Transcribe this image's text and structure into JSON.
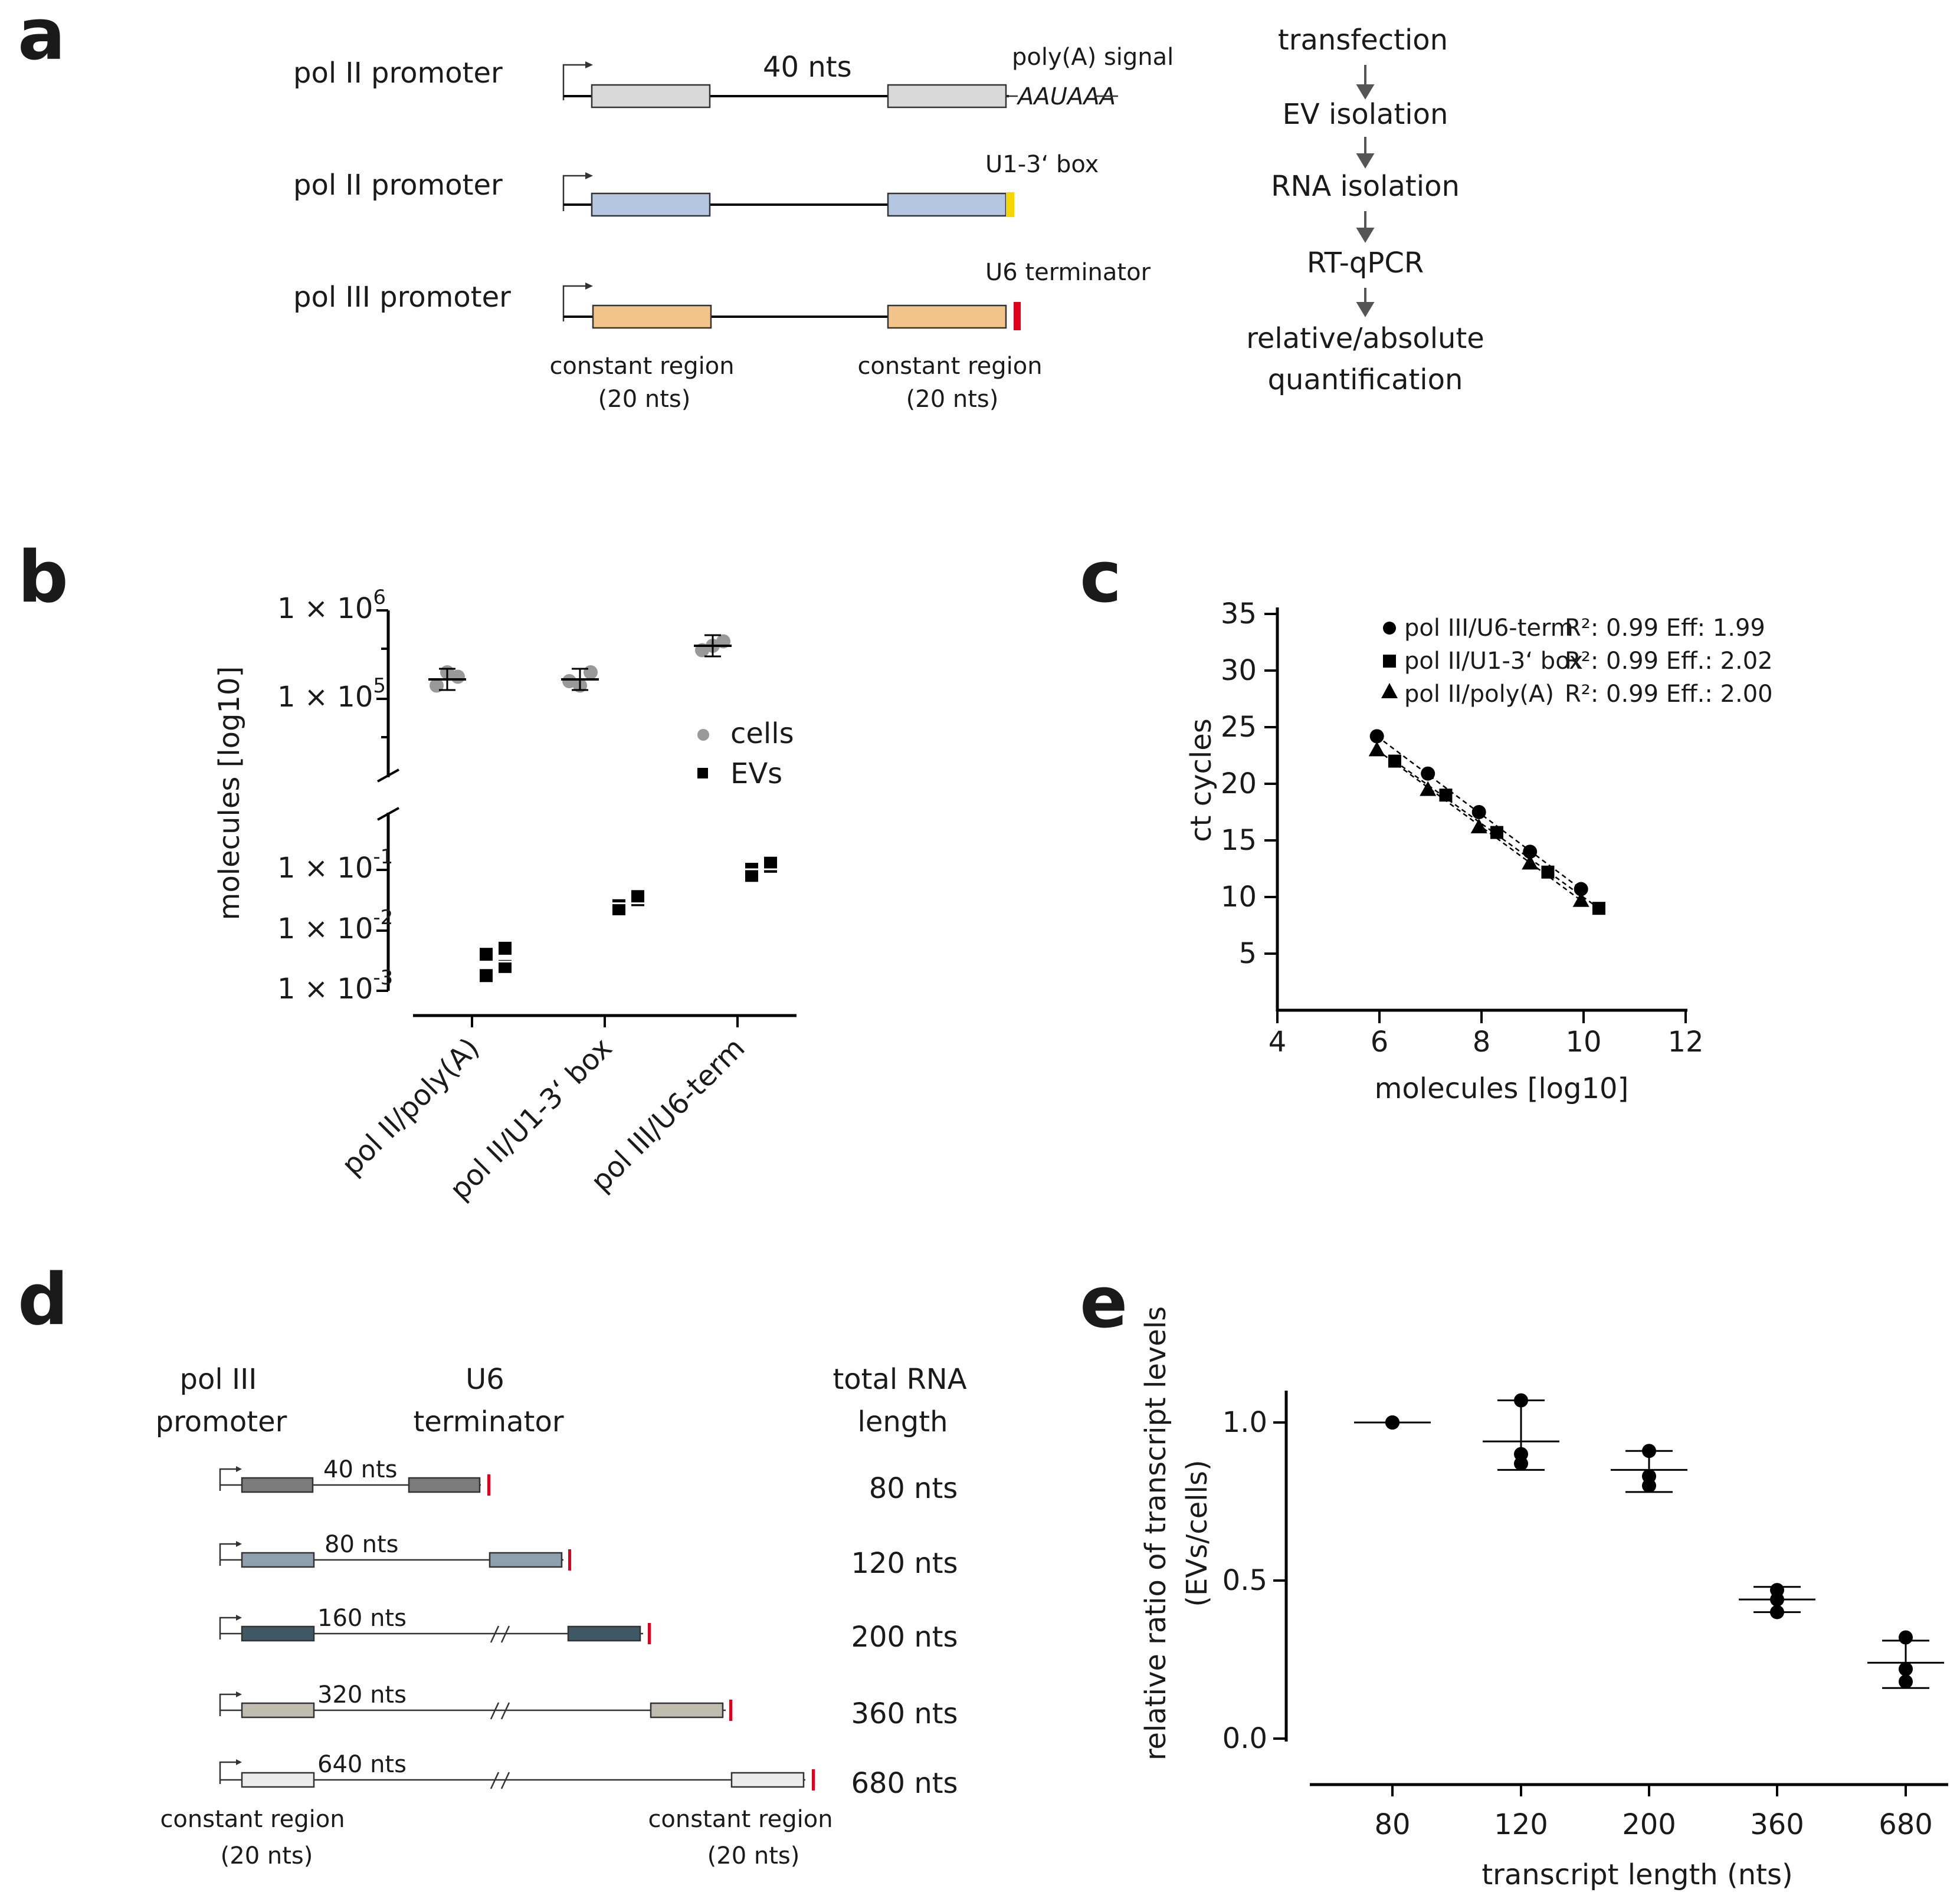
{
  "panel_labels": {
    "a": "a",
    "b": "b",
    "c": "c",
    "d": "d",
    "e": "e"
  },
  "panel_a": {
    "constructs": [
      {
        "promoter": "pol II promoter",
        "terminator": "poly(A) signal",
        "terminator_seq": "AAUAAA",
        "color": "#d9d9d9",
        "term_color": ""
      },
      {
        "promoter": "pol II promoter",
        "terminator": "U1-3‘ box",
        "terminator_seq": "",
        "color": "#b3c7e0",
        "term_color": "#f5d400"
      },
      {
        "promoter": "pol III promoter",
        "terminator": "U6 terminator",
        "terminator_seq": "",
        "color": "#f2c48a",
        "term_color": "#e0001b"
      }
    ],
    "insert_label": "40 nts",
    "constant_region_left": [
      "constant region",
      "(20 nts)"
    ],
    "constant_region_right": [
      "constant region",
      "(20 nts)"
    ],
    "workflow": [
      "transfection",
      "EV isolation",
      "RNA isolation",
      "RT-qPCR",
      "relative/absolute",
      "quantification"
    ]
  },
  "panel_b": {
    "ylabel": "molecules [log10]",
    "upper_ticks": [
      {
        "base": "1 × 10",
        "exp": "6"
      },
      {
        "base": "1 × 10",
        "exp": "5"
      }
    ],
    "lower_ticks": [
      {
        "base": "1 × 10",
        "exp": "-1"
      },
      {
        "base": "1 × 10",
        "exp": "-2"
      },
      {
        "base": "1 × 10",
        "exp": "-3"
      }
    ],
    "categories": [
      "pol II/poly(A)",
      "pol II/U1-3‘ box",
      "pol III/U6-term"
    ],
    "legend": [
      "cells",
      "EVs"
    ],
    "colors": {
      "cells": "#999999",
      "evs": "#000000"
    }
  },
  "chart_data": [
    {
      "type": "scatter",
      "panel": "b",
      "title": "",
      "ylabel": "molecules [log10]",
      "categories": [
        "pol II/poly(A)",
        "pol II/U1-3‘ box",
        "pol III/U6-term"
      ],
      "series": [
        {
          "name": "cells",
          "log10_values": [
            [
              5.15,
              5.3,
              5.25
            ],
            [
              5.2,
              5.15,
              5.3
            ],
            [
              5.55,
              5.6,
              5.65
            ]
          ],
          "mean_log10": [
            5.22,
            5.22,
            5.6
          ]
        },
        {
          "name": "EVs",
          "log10_values": [
            [
              -2.75,
              -2.3,
              -2.4,
              -2.6
            ],
            [
              -1.65,
              -1.45,
              -1.6,
              -1.5
            ],
            [
              -1.1,
              -0.95,
              -1.0,
              -0.9
            ]
          ],
          "mean_log10": [
            -2.52,
            -1.56,
            -1.0
          ]
        }
      ],
      "y_break": true
    },
    {
      "type": "scatter",
      "panel": "c",
      "xlabel": "molecules [log10]",
      "ylabel": "ct cycles",
      "xlim": [
        4,
        12
      ],
      "ylim": [
        0,
        35
      ],
      "xticks": [
        4,
        6,
        8,
        10,
        12
      ],
      "yticks": [
        5,
        10,
        15,
        20,
        25,
        30,
        35
      ],
      "series": [
        {
          "name": "pol III/U6-term",
          "marker": "circle",
          "stats": "R²: 0.99 Eff:  1.99",
          "x": [
            5.95,
            6.95,
            7.95,
            8.95,
            9.95
          ],
          "y": [
            24.2,
            20.9,
            17.5,
            14.0,
            10.7
          ]
        },
        {
          "name": "pol II/U1-3‘ box",
          "marker": "square",
          "stats": "R²: 0.99 Eff.: 2.02",
          "x": [
            6.3,
            7.3,
            8.3,
            9.3,
            10.3
          ],
          "y": [
            22.0,
            19.0,
            15.7,
            12.2,
            9.0
          ]
        },
        {
          "name": "pol II/poly(A)",
          "marker": "triangle",
          "stats": "R²: 0.99 Eff.: 2.00",
          "x": [
            5.95,
            6.95,
            7.95,
            8.95,
            9.95
          ],
          "y": [
            23.0,
            19.5,
            16.2,
            13.0,
            9.7
          ]
        }
      ],
      "legend": [
        {
          "name": "pol III/U6-term",
          "r2": "0.99",
          "eff_label": "Eff:",
          "eff": "1.99"
        },
        {
          "name": "pol II/U1-3‘ box",
          "r2": "0.99",
          "eff_label": "Eff.:",
          "eff": "2.02"
        },
        {
          "name": "pol II/poly(A)",
          "r2": "0.99",
          "eff_label": "Eff.:",
          "eff": "2.00"
        }
      ]
    },
    {
      "type": "scatter",
      "panel": "e",
      "xlabel": "transcript length (nts)",
      "ylabel_lines": [
        "relative ratio of transcript levels",
        "(EVs/cells)"
      ],
      "categories": [
        "80",
        "120",
        "200",
        "360",
        "680"
      ],
      "ylim": [
        0,
        1.1
      ],
      "yticks": [
        "0.0",
        "0.5",
        "1.0"
      ],
      "points": [
        [
          1.0,
          1.0,
          1.0
        ],
        [
          1.07,
          0.9,
          0.87
        ],
        [
          0.91,
          0.83,
          0.8
        ],
        [
          0.47,
          0.44,
          0.4
        ],
        [
          0.32,
          0.22,
          0.18
        ]
      ],
      "mean": [
        1.0,
        0.94,
        0.85,
        0.44,
        0.24
      ],
      "err_low": [
        1.0,
        0.85,
        0.78,
        0.4,
        0.16
      ],
      "err_high": [
        1.0,
        1.07,
        0.91,
        0.48,
        0.31
      ]
    }
  ],
  "panel_c": {
    "xlabel": "molecules [log10]",
    "ylabel": "ct cycles",
    "xticks": [
      "4",
      "6",
      "8",
      "10",
      "12"
    ],
    "yticks": [
      "5",
      "10",
      "15",
      "20",
      "25",
      "30",
      "35"
    ],
    "legend": [
      {
        "name": "pol III/U6-term",
        "stats": "R²: 0.99 Eff:  1.99"
      },
      {
        "name": "pol II/U1-3‘ box",
        "stats": "R²: 0.99 Eff.: 2.02"
      },
      {
        "name": "pol II/poly(A)",
        "stats": "R²: 0.99 Eff.: 2.00"
      }
    ]
  },
  "panel_d": {
    "header_promoter": [
      "pol III",
      "promoter"
    ],
    "header_terminator": [
      "U6",
      "terminator"
    ],
    "header_length": [
      "total RNA",
      "length"
    ],
    "constructs": [
      {
        "insert": "40 nts",
        "total": "80 nts",
        "color": "#7b7b7b"
      },
      {
        "insert": "80 nts",
        "total": "120 nts",
        "color": "#8ea0ad"
      },
      {
        "insert": "160 nts",
        "total": "200 nts",
        "color": "#3f5964"
      },
      {
        "insert": "320 nts",
        "total": "360 nts",
        "color": "#bfbdb0"
      },
      {
        "insert": "640 nts",
        "total": "680 nts",
        "color": "#ececec"
      }
    ],
    "constant_region_left": [
      "constant region",
      "(20 nts)"
    ],
    "constant_region_right": [
      "constant region",
      "(20 nts)"
    ],
    "term_color": "#e0001b"
  },
  "panel_e": {
    "xlabel": "transcript length (nts)",
    "ylabel_lines": [
      "relative ratio of transcript levels",
      "(EVs/cells)"
    ],
    "categories": [
      "80",
      "120",
      "200",
      "360",
      "680"
    ],
    "yticks": [
      "0.0",
      "0.5",
      "1.0"
    ]
  }
}
